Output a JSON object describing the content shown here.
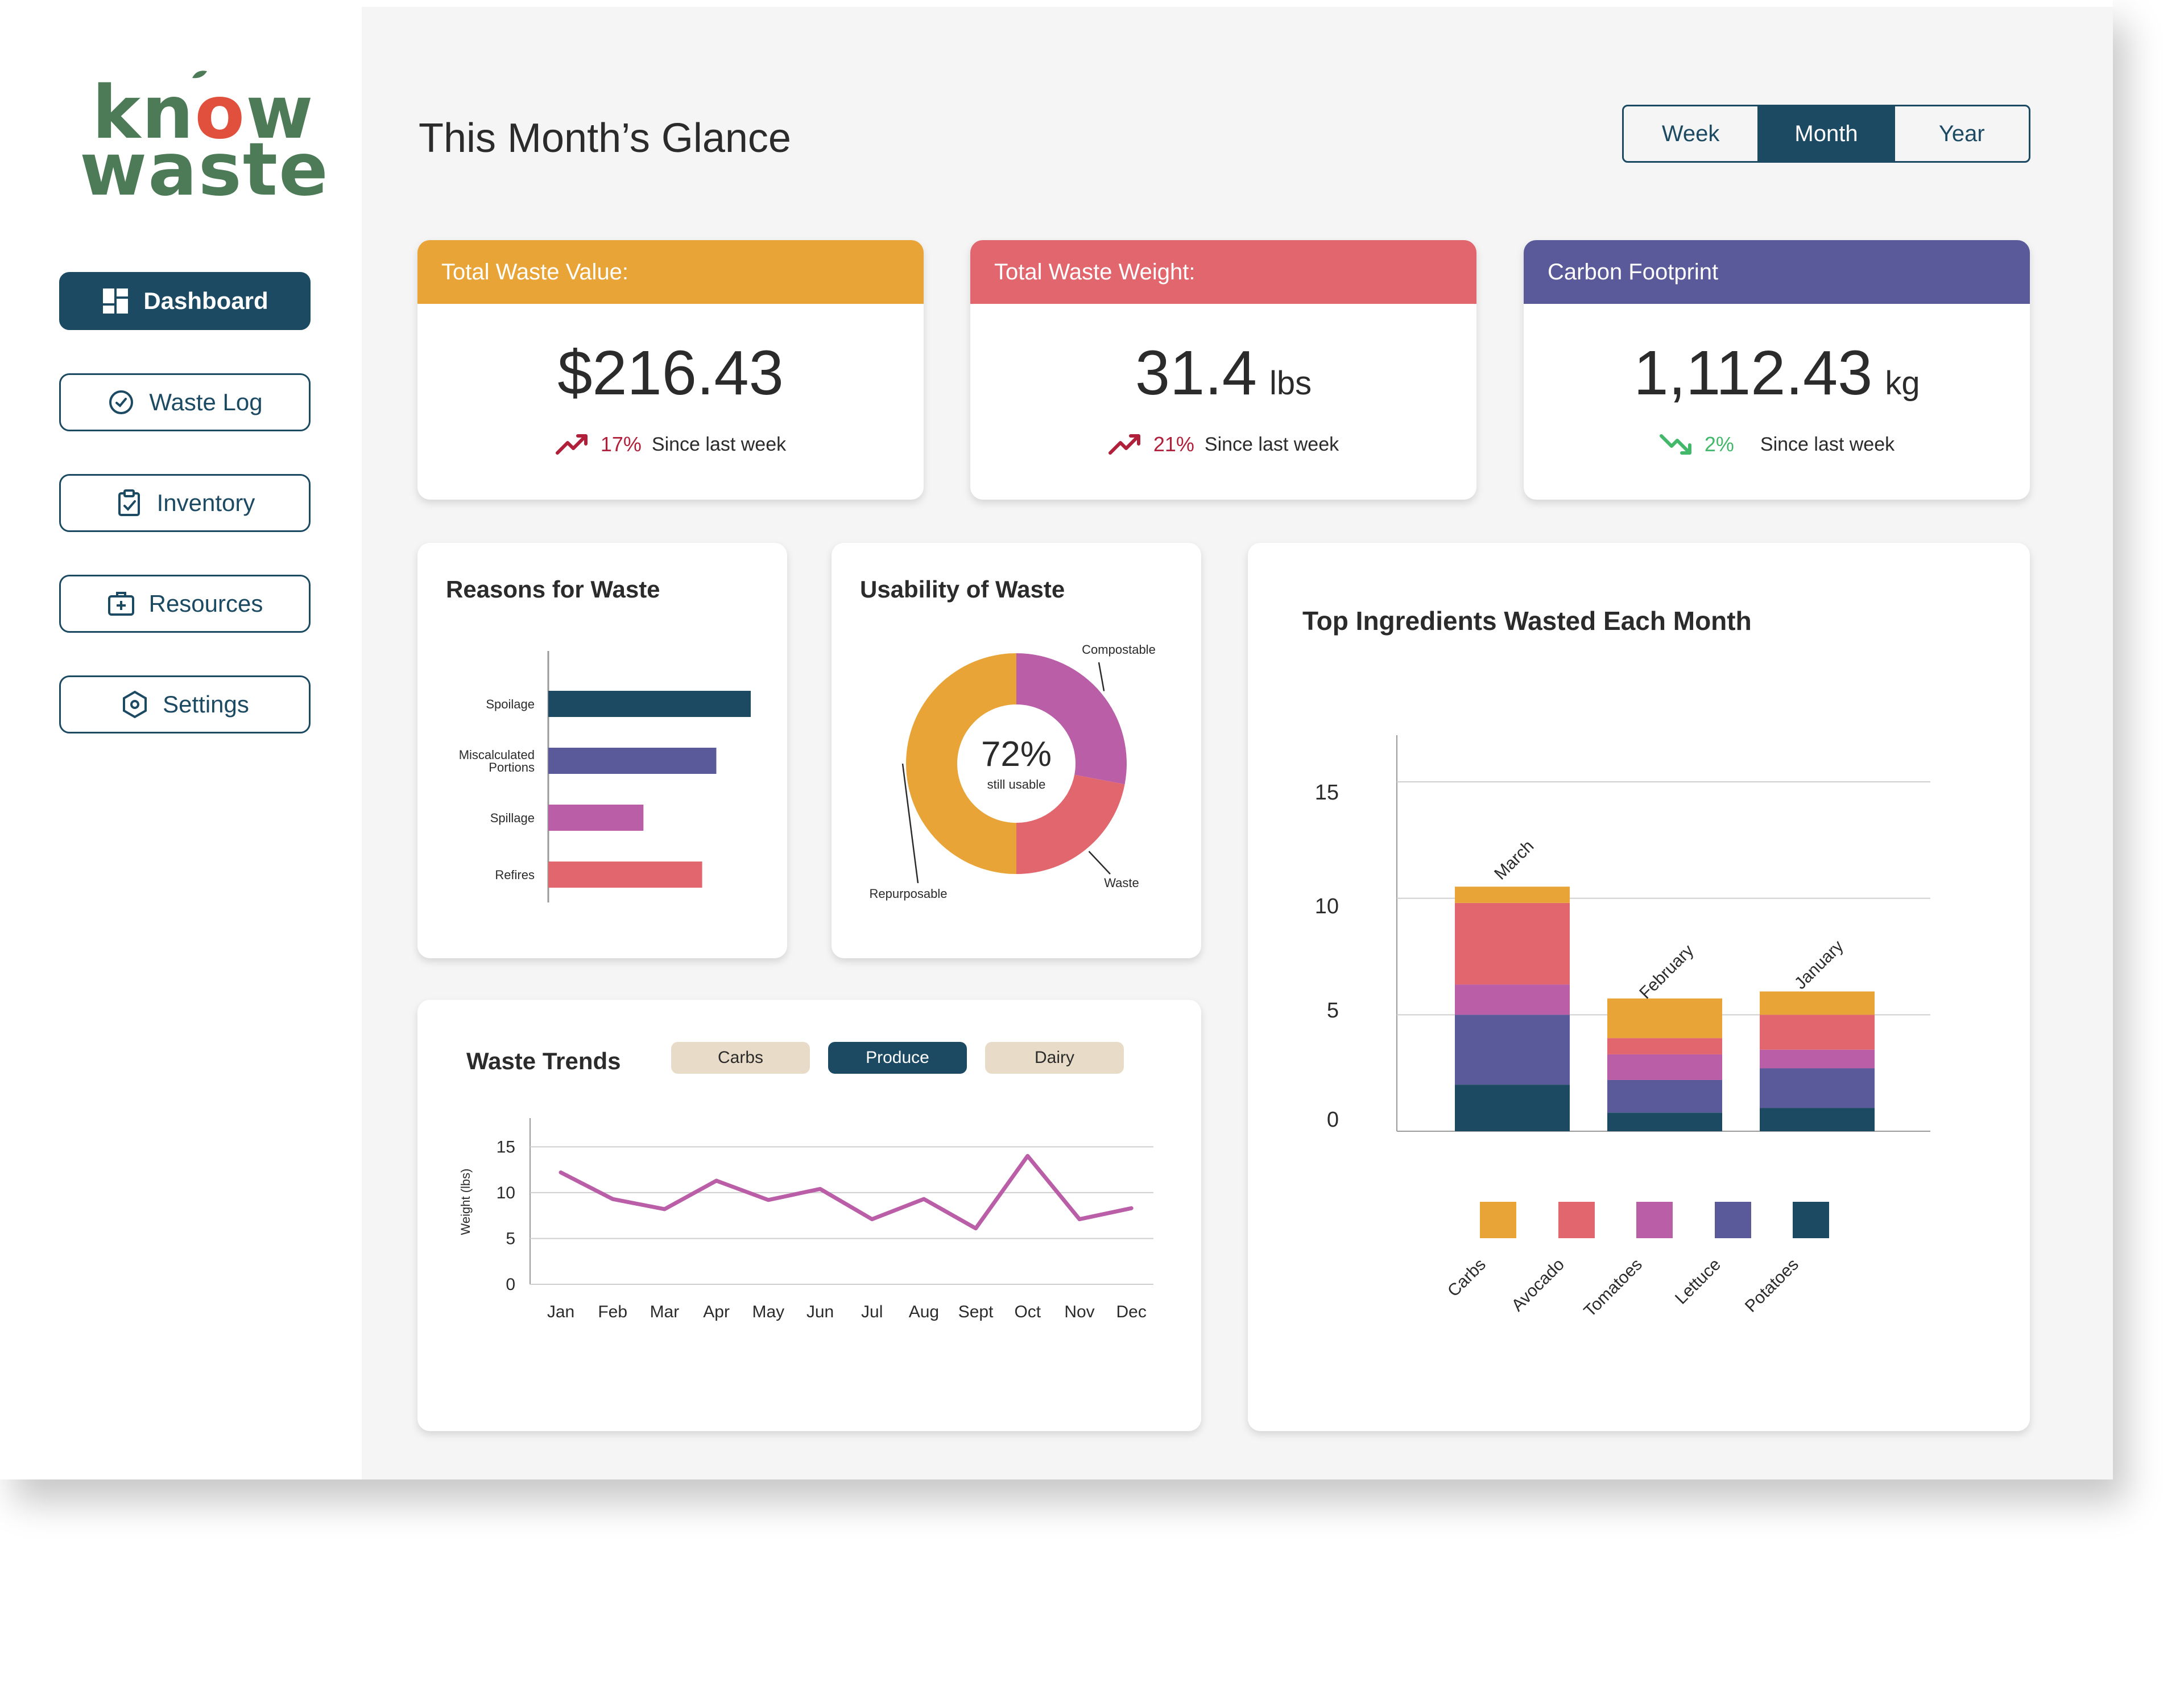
{
  "app": {
    "logo": {
      "line1_pre": "kn",
      "line1_o": "o",
      "line1_post": "w",
      "line2": "waste"
    }
  },
  "nav": [
    {
      "label": "Dashboard",
      "icon": "dashboard-icon"
    },
    {
      "label": "Waste Log",
      "icon": "clock-icon"
    },
    {
      "label": "Inventory",
      "icon": "clipboard-check-icon"
    },
    {
      "label": "Resources",
      "icon": "first-aid-kit-icon"
    },
    {
      "label": "Settings",
      "icon": "hexagon-gear-icon"
    }
  ],
  "header": {
    "title": "This Month’s Glance",
    "periods": [
      "Week",
      "Month",
      "Year"
    ],
    "selected_period": "Month"
  },
  "kpis": [
    {
      "label": "Total Waste Value:",
      "value": "$216.43",
      "unit": "",
      "change": "17%",
      "since": "Since last week",
      "trend": "up",
      "color": "#e8a436",
      "change_color": "#b0203a"
    },
    {
      "label": "Total Waste Weight:",
      "value": "31.4",
      "unit": "lbs",
      "change": "21%",
      "since": "Since last week",
      "trend": "up",
      "color": "#e2666e",
      "change_color": "#b0203a"
    },
    {
      "label": "Carbon Footprint",
      "value": "1,112.43",
      "unit": "kg",
      "change": "2%",
      "since": "Since last week",
      "trend": "down",
      "color": "#5a5a9a",
      "change_color": "#43b86a"
    }
  ],
  "reasons": {
    "title": "Reasons for Waste",
    "chart_data": {
      "type": "bar",
      "orientation": "horizontal",
      "categories": [
        "Spoilage",
        "Miscalculated Portions",
        "Spillage",
        "Refires"
      ],
      "category_lines": [
        [
          "Spoilage"
        ],
        [
          "Miscalculated",
          "Portions"
        ],
        [
          "Spillage"
        ],
        [
          "Refires"
        ]
      ],
      "values": [
        100,
        83,
        47,
        76
      ],
      "colors": [
        "#1c4a63",
        "#5a5a9a",
        "#b95ea7",
        "#e2666e"
      ],
      "xlim": [
        0,
        100
      ]
    }
  },
  "usability": {
    "title": "Usability of Waste",
    "center_value": "72%",
    "center_label": "still usable",
    "chart_data": {
      "type": "pie",
      "style": "donut",
      "labels": [
        "Compostable",
        "Waste",
        "Repurposable"
      ],
      "values": [
        28,
        22,
        50
      ],
      "colors": [
        "#b95ea7",
        "#e2666e",
        "#e8a436"
      ]
    }
  },
  "trends": {
    "title": "Waste Trends",
    "filters": [
      "Carbs",
      "Produce",
      "Dairy"
    ],
    "selected_filter": "Produce",
    "chart_data": {
      "type": "line",
      "x": [
        "Jan",
        "Feb",
        "Mar",
        "Apr",
        "May",
        "Jun",
        "Jul",
        "Aug",
        "Sept",
        "Oct",
        "Nov",
        "Dec"
      ],
      "series": [
        {
          "values": [
            12.2,
            9.3,
            8.2,
            11.3,
            9.2,
            10.4,
            7.1,
            9.3,
            6.1,
            14.0,
            7.1,
            8.3
          ]
        }
      ],
      "ylabel": "Weight (lbs)",
      "yticks": [
        0,
        5,
        10,
        15
      ],
      "ylim": [
        0,
        18
      ],
      "color": "#b95ea7"
    }
  },
  "top": {
    "title": "Top Ingredients Wasted Each Month",
    "chart_data": {
      "type": "bar",
      "stacked": true,
      "categories": [
        "March",
        "February",
        "January"
      ],
      "series": [
        {
          "name": "Potatoes",
          "color": "#1c4a63",
          "values": [
            2.0,
            0.8,
            1.0
          ]
        },
        {
          "name": "Lettuce",
          "color": "#5a5a9a",
          "values": [
            3.0,
            1.4,
            1.7
          ]
        },
        {
          "name": "Tomatoes",
          "color": "#b95ea7",
          "values": [
            1.3,
            1.1,
            0.8
          ]
        },
        {
          "name": "Avocado",
          "color": "#e2666e",
          "values": [
            3.5,
            0.7,
            1.5
          ]
        },
        {
          "name": "Carbs",
          "color": "#e8a436",
          "values": [
            0.7,
            1.7,
            1.0
          ]
        }
      ],
      "legend_order": [
        "Carbs",
        "Avocado",
        "Tomatoes",
        "Lettuce",
        "Potatoes"
      ],
      "yticks": [
        0,
        5,
        10,
        15
      ],
      "ylim": [
        0,
        15
      ]
    }
  }
}
